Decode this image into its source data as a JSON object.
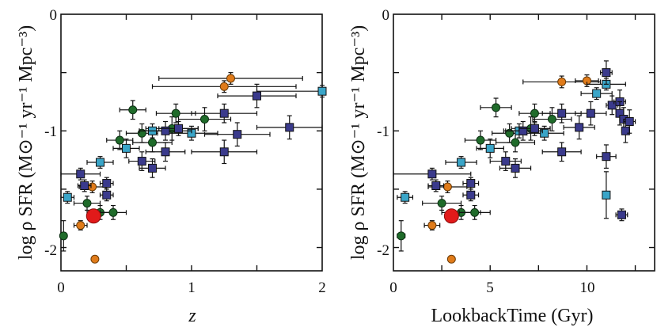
{
  "chart_data": [
    {
      "type": "scatter",
      "panel": "left",
      "ylabel": "log ρ SFR (M⊙⁻¹ yr⁻¹ Mpc⁻³)",
      "xlabel": "z",
      "xlim": [
        0,
        2
      ],
      "ylim": [
        -2.2,
        0
      ],
      "x_ticks": [
        "0",
        "1",
        "2"
      ],
      "y_ticks": [
        "0",
        "-1",
        "-2"
      ],
      "series": [
        {
          "name": "green",
          "color": "#1f6b2a",
          "points": [
            {
              "x": 0.02,
              "y": -1.9,
              "xerr": 0.02,
              "yerr": 0.13
            },
            {
              "x": 0.2,
              "y": -1.62,
              "xerr": 0.1,
              "yerr": 0.06
            },
            {
              "x": 0.3,
              "y": -1.7,
              "xerr": 0.1,
              "yerr": 0.06
            },
            {
              "x": 0.4,
              "y": -1.7,
              "xerr": 0.1,
              "yerr": 0.06
            },
            {
              "x": 0.45,
              "y": -1.08,
              "xerr": 0.1,
              "yerr": 0.08
            },
            {
              "x": 0.55,
              "y": -0.82,
              "xerr": 0.1,
              "yerr": 0.08
            },
            {
              "x": 0.62,
              "y": -1.02,
              "xerr": 0.12,
              "yerr": 0.08
            },
            {
              "x": 0.7,
              "y": -1.1,
              "xerr": 0.15,
              "yerr": 0.08
            },
            {
              "x": 0.85,
              "y": -0.98,
              "xerr": 0.2,
              "yerr": 0.1
            },
            {
              "x": 0.88,
              "y": -0.85,
              "xerr": 0.15,
              "yerr": 0.08
            },
            {
              "x": 1.1,
              "y": -0.9,
              "xerr": 0.2,
              "yerr": 0.1
            }
          ]
        },
        {
          "name": "orange",
          "color": "#e07b1a",
          "points": [
            {
              "x": 0.15,
              "y": -1.81,
              "xerr": 0.05,
              "yerr": 0.04
            },
            {
              "x": 0.24,
              "y": -1.48,
              "xerr": 0.1,
              "yerr": 0.05
            },
            {
              "x": 0.26,
              "y": -2.1,
              "xerr": 0.0,
              "yerr": 0.0
            },
            {
              "x": 1.25,
              "y": -0.62,
              "xerr": 0.55,
              "yerr": 0.05
            },
            {
              "x": 1.3,
              "y": -0.55,
              "xerr": 0.55,
              "yerr": 0.05
            }
          ]
        },
        {
          "name": "light-blue",
          "color": "#3aa5c8",
          "points": [
            {
              "x": 0.05,
              "y": -1.57,
              "xerr": 0.05,
              "yerr": 0.05
            },
            {
              "x": 0.3,
              "y": -1.27,
              "xerr": 0.1,
              "yerr": 0.05
            },
            {
              "x": 0.5,
              "y": -1.15,
              "xerr": 0.1,
              "yerr": 0.08
            },
            {
              "x": 0.7,
              "y": -1.0,
              "xerr": 0.1,
              "yerr": 0.06
            },
            {
              "x": 1.0,
              "y": -1.02,
              "xerr": 0.2,
              "yerr": 0.06
            },
            {
              "x": 2.0,
              "y": -0.66,
              "xerr": 0.5,
              "yerr": 0.05
            }
          ]
        },
        {
          "name": "dark-blue",
          "color": "#3a3a8c",
          "points": [
            {
              "x": 0.15,
              "y": -1.37,
              "xerr": 0.15,
              "yerr": 0.05
            },
            {
              "x": 0.18,
              "y": -1.47,
              "xerr": 0.05,
              "yerr": 0.05
            },
            {
              "x": 0.35,
              "y": -1.45,
              "xerr": 0.05,
              "yerr": 0.05
            },
            {
              "x": 0.35,
              "y": -1.55,
              "xerr": 0.05,
              "yerr": 0.05
            },
            {
              "x": 0.62,
              "y": -1.26,
              "xerr": 0.1,
              "yerr": 0.08
            },
            {
              "x": 0.7,
              "y": -1.32,
              "xerr": 0.1,
              "yerr": 0.08
            },
            {
              "x": 0.8,
              "y": -1.18,
              "xerr": 0.15,
              "yerr": 0.08
            },
            {
              "x": 0.8,
              "y": -1.0,
              "xerr": 0.2,
              "yerr": 0.08
            },
            {
              "x": 0.9,
              "y": -0.98,
              "xerr": 0.15,
              "yerr": 0.06
            },
            {
              "x": 1.25,
              "y": -0.85,
              "xerr": 0.25,
              "yerr": 0.08
            },
            {
              "x": 1.25,
              "y": -1.18,
              "xerr": 0.25,
              "yerr": 0.1
            },
            {
              "x": 1.35,
              "y": -1.03,
              "xerr": 0.25,
              "yerr": 0.1
            },
            {
              "x": 1.5,
              "y": -0.7,
              "xerr": 0.3,
              "yerr": 0.1
            },
            {
              "x": 1.75,
              "y": -0.97,
              "xerr": 0.25,
              "yerr": 0.1
            }
          ]
        },
        {
          "name": "red",
          "color": "#e11a1a",
          "points": [
            {
              "x": 0.25,
              "y": -1.73,
              "xerr": 0.0,
              "yerr": 0.0
            }
          ]
        }
      ]
    },
    {
      "type": "scatter",
      "panel": "right",
      "ylabel": "log ρ SFR (M⊙⁻¹ yr⁻¹ Mpc⁻³)",
      "xlabel": "LookbackTime (Gyr)",
      "xlim": [
        0,
        13.5
      ],
      "ylim": [
        -2.2,
        0
      ],
      "x_ticks": [
        "0",
        "5",
        "10"
      ],
      "y_ticks": [
        "0",
        "-1",
        "-2"
      ],
      "series": [
        {
          "name": "green",
          "color": "#1f6b2a",
          "points": [
            {
              "x": 0.4,
              "y": -1.9,
              "xerr": 0.2,
              "yerr": 0.13
            },
            {
              "x": 2.5,
              "y": -1.62,
              "xerr": 1.0,
              "yerr": 0.06
            },
            {
              "x": 3.5,
              "y": -1.7,
              "xerr": 1.0,
              "yerr": 0.06
            },
            {
              "x": 4.2,
              "y": -1.7,
              "xerr": 0.8,
              "yerr": 0.06
            },
            {
              "x": 4.5,
              "y": -1.08,
              "xerr": 0.8,
              "yerr": 0.08
            },
            {
              "x": 5.3,
              "y": -0.8,
              "xerr": 0.8,
              "yerr": 0.08
            },
            {
              "x": 6.0,
              "y": -1.02,
              "xerr": 0.9,
              "yerr": 0.08
            },
            {
              "x": 6.3,
              "y": -1.1,
              "xerr": 1.0,
              "yerr": 0.08
            },
            {
              "x": 7.1,
              "y": -0.98,
              "xerr": 1.0,
              "yerr": 0.1
            },
            {
              "x": 7.3,
              "y": -0.85,
              "xerr": 0.8,
              "yerr": 0.08
            },
            {
              "x": 8.2,
              "y": -0.9,
              "xerr": 1.0,
              "yerr": 0.1
            }
          ]
        },
        {
          "name": "orange",
          "color": "#e07b1a",
          "points": [
            {
              "x": 2.0,
              "y": -1.81,
              "xerr": 0.4,
              "yerr": 0.04
            },
            {
              "x": 2.8,
              "y": -1.48,
              "xerr": 1.0,
              "yerr": 0.05
            },
            {
              "x": 3.0,
              "y": -2.1,
              "xerr": 0.0,
              "yerr": 0.0
            },
            {
              "x": 8.7,
              "y": -0.58,
              "xerr": 2.0,
              "yerr": 0.05
            },
            {
              "x": 10.0,
              "y": -0.57,
              "xerr": 0.6,
              "yerr": 0.05
            }
          ]
        },
        {
          "name": "light-blue",
          "color": "#3aa5c8",
          "points": [
            {
              "x": 0.6,
              "y": -1.57,
              "xerr": 0.4,
              "yerr": 0.05
            },
            {
              "x": 3.5,
              "y": -1.27,
              "xerr": 0.8,
              "yerr": 0.05
            },
            {
              "x": 5.0,
              "y": -1.15,
              "xerr": 0.7,
              "yerr": 0.08
            },
            {
              "x": 6.5,
              "y": -1.0,
              "xerr": 0.7,
              "yerr": 0.06
            },
            {
              "x": 7.8,
              "y": -1.02,
              "xerr": 1.0,
              "yerr": 0.06
            },
            {
              "x": 10.5,
              "y": -0.68,
              "xerr": 0.8,
              "yerr": 0.05
            },
            {
              "x": 11.0,
              "y": -0.6,
              "xerr": 1.0,
              "yerr": 0.05
            },
            {
              "x": 11.0,
              "y": -1.55,
              "xerr": 0.0,
              "yerr": 0.2
            }
          ]
        },
        {
          "name": "dark-blue",
          "color": "#3a3a8c",
          "points": [
            {
              "x": 2.0,
              "y": -1.37,
              "xerr": 2.0,
              "yerr": 0.05
            },
            {
              "x": 2.2,
              "y": -1.47,
              "xerr": 0.4,
              "yerr": 0.05
            },
            {
              "x": 4.0,
              "y": -1.45,
              "xerr": 0.4,
              "yerr": 0.05
            },
            {
              "x": 4.0,
              "y": -1.55,
              "xerr": 0.4,
              "yerr": 0.05
            },
            {
              "x": 5.8,
              "y": -1.26,
              "xerr": 0.8,
              "yerr": 0.08
            },
            {
              "x": 6.3,
              "y": -1.32,
              "xerr": 0.8,
              "yerr": 0.08
            },
            {
              "x": 6.7,
              "y": -1.0,
              "xerr": 1.0,
              "yerr": 0.08
            },
            {
              "x": 7.3,
              "y": -0.98,
              "xerr": 0.8,
              "yerr": 0.06
            },
            {
              "x": 8.7,
              "y": -1.18,
              "xerr": 1.0,
              "yerr": 0.08
            },
            {
              "x": 8.7,
              "y": -0.85,
              "xerr": 1.0,
              "yerr": 0.08
            },
            {
              "x": 9.6,
              "y": -0.97,
              "xerr": 0.8,
              "yerr": 0.1
            },
            {
              "x": 10.2,
              "y": -0.85,
              "xerr": 0.8,
              "yerr": 0.1
            },
            {
              "x": 11.0,
              "y": -0.5,
              "xerr": 0.3,
              "yerr": 0.1
            },
            {
              "x": 11.0,
              "y": -1.22,
              "xerr": 0.5,
              "yerr": 0.1
            },
            {
              "x": 11.3,
              "y": -0.78,
              "xerr": 0.3,
              "yerr": 0.08
            },
            {
              "x": 11.7,
              "y": -0.75,
              "xerr": 0.3,
              "yerr": 0.1
            },
            {
              "x": 11.7,
              "y": -0.85,
              "xerr": 0.2,
              "yerr": 0.1
            },
            {
              "x": 11.8,
              "y": -1.72,
              "xerr": 0.3,
              "yerr": 0.05
            },
            {
              "x": 11.9,
              "y": -0.9,
              "xerr": 0.2,
              "yerr": 0.1
            },
            {
              "x": 12.0,
              "y": -1.0,
              "xerr": 0.2,
              "yerr": 0.1
            },
            {
              "x": 12.2,
              "y": -0.92,
              "xerr": 0.3,
              "yerr": 0.1
            }
          ]
        },
        {
          "name": "red",
          "color": "#e11a1a",
          "points": [
            {
              "x": 3.0,
              "y": -1.73,
              "xerr": 0.0,
              "yerr": 0.0
            }
          ]
        }
      ]
    }
  ]
}
